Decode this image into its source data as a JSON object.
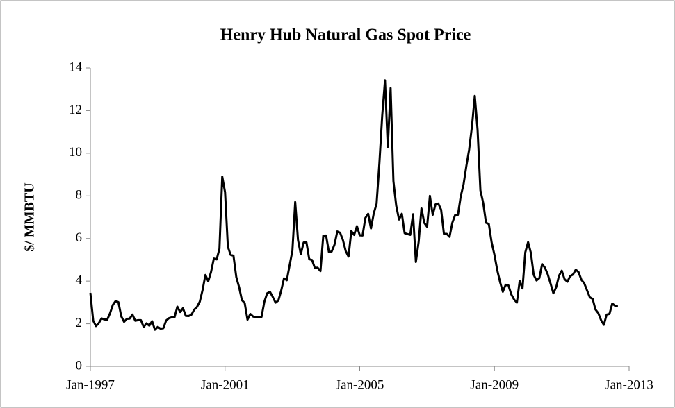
{
  "chart_data": {
    "type": "line",
    "title": "Henry Hub Natural Gas Spot Price",
    "y_label": "$/ MMBTU",
    "x": [
      "1997-01",
      "1997-02",
      "1997-03",
      "1997-04",
      "1997-05",
      "1997-06",
      "1997-07",
      "1997-08",
      "1997-09",
      "1997-10",
      "1997-11",
      "1997-12",
      "1998-01",
      "1998-02",
      "1998-03",
      "1998-04",
      "1998-05",
      "1998-06",
      "1998-07",
      "1998-08",
      "1998-09",
      "1998-10",
      "1998-11",
      "1998-12",
      "1999-01",
      "1999-02",
      "1999-03",
      "1999-04",
      "1999-05",
      "1999-06",
      "1999-07",
      "1999-08",
      "1999-09",
      "1999-10",
      "1999-11",
      "1999-12",
      "2000-01",
      "2000-02",
      "2000-03",
      "2000-04",
      "2000-05",
      "2000-06",
      "2000-07",
      "2000-08",
      "2000-09",
      "2000-10",
      "2000-11",
      "2000-12",
      "2001-01",
      "2001-02",
      "2001-03",
      "2001-04",
      "2001-05",
      "2001-06",
      "2001-07",
      "2001-08",
      "2001-09",
      "2001-10",
      "2001-11",
      "2001-12",
      "2002-01",
      "2002-02",
      "2002-03",
      "2002-04",
      "2002-05",
      "2002-06",
      "2002-07",
      "2002-08",
      "2002-09",
      "2002-10",
      "2002-11",
      "2002-12",
      "2003-01",
      "2003-02",
      "2003-03",
      "2003-04",
      "2003-05",
      "2003-06",
      "2003-07",
      "2003-08",
      "2003-09",
      "2003-10",
      "2003-11",
      "2003-12",
      "2004-01",
      "2004-02",
      "2004-03",
      "2004-04",
      "2004-05",
      "2004-06",
      "2004-07",
      "2004-08",
      "2004-09",
      "2004-10",
      "2004-11",
      "2004-12",
      "2005-01",
      "2005-02",
      "2005-03",
      "2005-04",
      "2005-05",
      "2005-06",
      "2005-07",
      "2005-08",
      "2005-09",
      "2005-10",
      "2005-11",
      "2005-12",
      "2006-01",
      "2006-02",
      "2006-03",
      "2006-04",
      "2006-05",
      "2006-06",
      "2006-07",
      "2006-08",
      "2006-09",
      "2006-10",
      "2006-11",
      "2006-12",
      "2007-01",
      "2007-02",
      "2007-03",
      "2007-04",
      "2007-05",
      "2007-06",
      "2007-07",
      "2007-08",
      "2007-09",
      "2007-10",
      "2007-11",
      "2007-12",
      "2008-01",
      "2008-02",
      "2008-03",
      "2008-04",
      "2008-05",
      "2008-06",
      "2008-07",
      "2008-08",
      "2008-09",
      "2008-10",
      "2008-11",
      "2008-12",
      "2009-01",
      "2009-02",
      "2009-03",
      "2009-04",
      "2009-05",
      "2009-06",
      "2009-07",
      "2009-08",
      "2009-09",
      "2009-10",
      "2009-11",
      "2009-12",
      "2010-01",
      "2010-02",
      "2010-03",
      "2010-04",
      "2010-05",
      "2010-06",
      "2010-07",
      "2010-08",
      "2010-09",
      "2010-10",
      "2010-11",
      "2010-12",
      "2011-01",
      "2011-02",
      "2011-03",
      "2011-04",
      "2011-05",
      "2011-06",
      "2011-07",
      "2011-08",
      "2011-09",
      "2011-10",
      "2011-11",
      "2011-12",
      "2012-01",
      "2012-02",
      "2012-03",
      "2012-04",
      "2012-05",
      "2012-06",
      "2012-07",
      "2012-08",
      "2012-09"
    ],
    "series": [
      {
        "name": "Henry Hub",
        "color": "#000000",
        "values": [
          3.45,
          2.15,
          1.89,
          2.03,
          2.25,
          2.2,
          2.19,
          2.49,
          2.88,
          3.07,
          3.01,
          2.35,
          2.09,
          2.23,
          2.24,
          2.43,
          2.14,
          2.17,
          2.17,
          1.85,
          2.02,
          1.91,
          2.12,
          1.72,
          1.85,
          1.77,
          1.79,
          2.15,
          2.26,
          2.3,
          2.31,
          2.8,
          2.55,
          2.73,
          2.37,
          2.36,
          2.42,
          2.66,
          2.79,
          3.04,
          3.59,
          4.29,
          3.99,
          4.43,
          5.06,
          5.02,
          5.52,
          8.9,
          8.17,
          5.61,
          5.23,
          5.19,
          4.19,
          3.72,
          3.11,
          2.97,
          2.19,
          2.46,
          2.34,
          2.3,
          2.32,
          2.32,
          3.03,
          3.43,
          3.5,
          3.26,
          2.99,
          3.09,
          3.55,
          4.13,
          4.04,
          4.74,
          5.43,
          7.71,
          5.93,
          5.26,
          5.81,
          5.82,
          5.03,
          4.99,
          4.62,
          4.63,
          4.47,
          6.13,
          6.14,
          5.37,
          5.39,
          5.71,
          6.33,
          6.27,
          5.93,
          5.41,
          5.15,
          6.35,
          6.17,
          6.58,
          6.15,
          6.14,
          6.96,
          7.16,
          6.47,
          7.18,
          7.63,
          9.53,
          11.75,
          13.42,
          10.3,
          13.05,
          8.69,
          7.54,
          6.89,
          7.16,
          6.25,
          6.21,
          6.17,
          7.14,
          4.9,
          5.85,
          7.41,
          6.73,
          6.55,
          8.0,
          7.11,
          7.6,
          7.64,
          7.35,
          6.22,
          6.22,
          6.08,
          6.74,
          7.1,
          7.11,
          7.99,
          8.54,
          9.41,
          10.18,
          11.27,
          12.69,
          11.09,
          8.26,
          7.67,
          6.74,
          6.68,
          5.82,
          5.24,
          4.52,
          3.96,
          3.5,
          3.83,
          3.8,
          3.38,
          3.14,
          2.99,
          4.01,
          3.66,
          5.35,
          5.83,
          5.32,
          4.29,
          4.03,
          4.14,
          4.8,
          4.63,
          4.32,
          3.89,
          3.43,
          3.71,
          4.25,
          4.49,
          4.09,
          3.97,
          4.24,
          4.31,
          4.54,
          4.42,
          4.06,
          3.9,
          3.57,
          3.24,
          3.17,
          2.67,
          2.5,
          2.17,
          1.95,
          2.43,
          2.46,
          2.95,
          2.84,
          2.85
        ]
      }
    ],
    "xlim": [
      "1997-01",
      "2013-01"
    ],
    "xticks": [
      {
        "value": "1997-01",
        "label": "Jan-1997"
      },
      {
        "value": "2001-01",
        "label": "Jan-2001"
      },
      {
        "value": "2005-01",
        "label": "Jan-2005"
      },
      {
        "value": "2009-01",
        "label": "Jan-2009"
      },
      {
        "value": "2013-01",
        "label": "Jan-2013"
      }
    ],
    "ylim": [
      0,
      14
    ],
    "yticks": [
      0,
      2,
      4,
      6,
      8,
      10,
      12,
      14
    ],
    "grid": false
  }
}
